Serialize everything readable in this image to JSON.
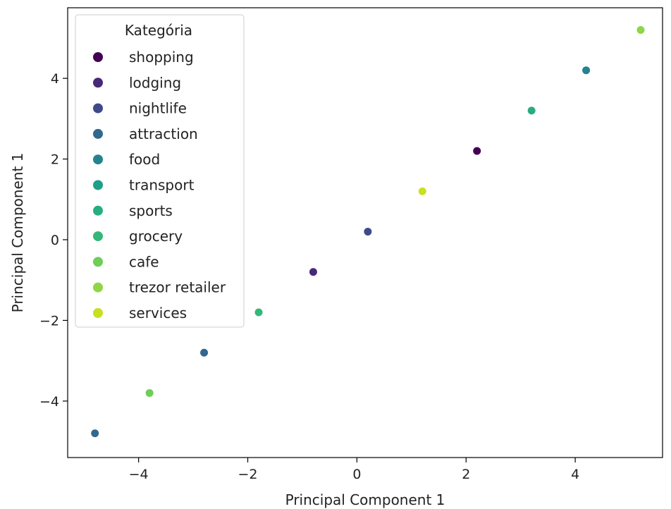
{
  "chart_data": {
    "type": "scatter",
    "xlabel": "Principal Component 1",
    "ylabel": "Principal Component 1",
    "xlim": [
      -5.3,
      5.6
    ],
    "ylim": [
      -5.4,
      5.75
    ],
    "xticks": [
      -4,
      -2,
      0,
      2,
      4
    ],
    "yticks": [
      -4,
      -2,
      0,
      2,
      4
    ],
    "grid": false,
    "legend": {
      "title": "Kategória",
      "placement": "upper-left",
      "entries": [
        {
          "label": "shopping",
          "color": "#440154"
        },
        {
          "label": "lodging",
          "color": "#482878"
        },
        {
          "label": "nightlife",
          "color": "#3e4a89"
        },
        {
          "label": "attraction",
          "color": "#31688e"
        },
        {
          "label": "food",
          "color": "#26828e"
        },
        {
          "label": "transport",
          "color": "#1f9e89"
        },
        {
          "label": "sports",
          "color": "#27ad81"
        },
        {
          "label": "grocery",
          "color": "#35b779"
        },
        {
          "label": "cafe",
          "color": "#6ece58"
        },
        {
          "label": "trezor retailer",
          "color": "#8ed645"
        },
        {
          "label": "services",
          "color": "#c8e020"
        }
      ]
    },
    "points": [
      {
        "x": 5.2,
        "y": 5.2,
        "category": "trezor retailer"
      },
      {
        "x": 4.2,
        "y": 4.2,
        "category": "food"
      },
      {
        "x": 3.2,
        "y": 3.2,
        "category": "sports"
      },
      {
        "x": 2.2,
        "y": 2.2,
        "category": "shopping"
      },
      {
        "x": 1.2,
        "y": 1.2,
        "category": "services"
      },
      {
        "x": 0.2,
        "y": 0.2,
        "category": "nightlife"
      },
      {
        "x": -0.8,
        "y": -0.8,
        "category": "lodging"
      },
      {
        "x": -1.8,
        "y": -1.8,
        "category": "grocery"
      },
      {
        "x": -2.8,
        "y": -2.8,
        "category": "attraction"
      },
      {
        "x": -3.8,
        "y": -3.8,
        "category": "cafe"
      },
      {
        "x": -4.8,
        "y": -4.8,
        "category": "attraction"
      }
    ]
  }
}
